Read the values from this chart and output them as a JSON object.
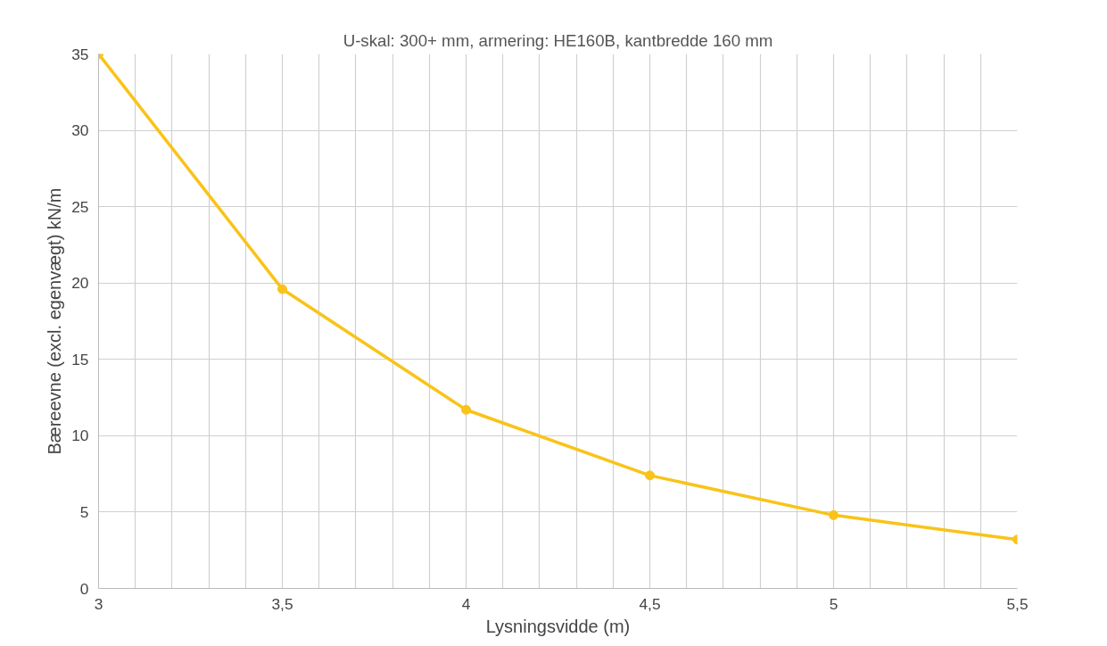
{
  "chart_data": {
    "type": "line",
    "title": "U-skal: 300+ mm, armering: HE160B, kantbredde 160 mm",
    "xlabel": "Lysningsvidde (m)",
    "ylabel": "Bæreevne (excl. egenvægt) kN/m",
    "x": [
      3,
      3.5,
      4,
      4.5,
      5,
      5.5
    ],
    "series": [
      {
        "color": "#f9c319",
        "values": [
          35,
          19.6,
          11.7,
          7.4,
          4.8,
          3.2
        ]
      }
    ],
    "xlim": [
      3,
      5.5
    ],
    "ylim": [
      0,
      35
    ],
    "xticks": [
      3,
      {
        "value": 3.1,
        "label": null
      },
      {
        "value": 3.2,
        "label": null
      },
      {
        "value": 3.3,
        "label": null
      },
      {
        "value": 3.4,
        "label": null
      },
      {
        "value": 3.5,
        "label": "3,5"
      },
      {
        "value": 3.6,
        "label": null
      },
      {
        "value": 3.7,
        "label": null
      },
      {
        "value": 3.8,
        "label": null
      },
      {
        "value": 3.9,
        "label": null
      },
      4,
      {
        "value": 4.1,
        "label": null
      },
      {
        "value": 4.2,
        "label": null
      },
      {
        "value": 4.3,
        "label": null
      },
      {
        "value": 4.4,
        "label": null
      },
      {
        "value": 4.5,
        "label": "4,5"
      },
      {
        "value": 4.6,
        "label": null
      },
      {
        "value": 4.7,
        "label": null
      },
      {
        "value": 4.8,
        "label": null
      },
      {
        "value": 4.9,
        "label": null
      },
      5,
      {
        "value": 5.1,
        "label": null
      },
      {
        "value": 5.2,
        "label": null
      },
      {
        "value": 5.3,
        "label": null
      },
      {
        "value": 5.4,
        "label": null
      },
      {
        "value": 5.5,
        "label": "5,5"
      }
    ],
    "yticks": [
      0,
      5,
      10,
      15,
      20,
      25,
      30,
      35
    ],
    "grid": true,
    "marker": "circle",
    "line_style": "solid"
  }
}
